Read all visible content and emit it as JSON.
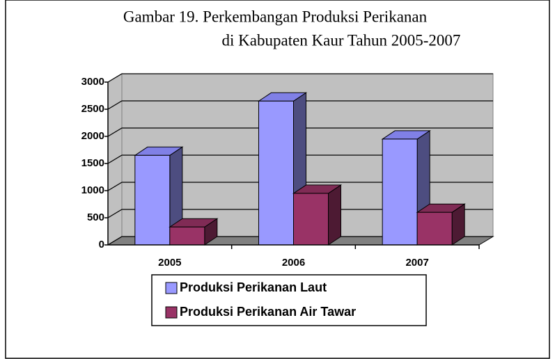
{
  "chart_data": {
    "type": "bar3d",
    "title_lines": [
      "Gambar 19. Perkembangan Produksi Perikanan",
      "di Kabupaten Kaur Tahun 2005-2007"
    ],
    "categories": [
      "2005",
      "2006",
      "2007"
    ],
    "series": [
      {
        "name": "Produksi Perikanan Laut",
        "color": "#9999ff",
        "values": [
          1650,
          2650,
          1950
        ]
      },
      {
        "name": "Produksi Perikanan Air Tawar",
        "color": "#993366",
        "values": [
          330,
          950,
          600
        ]
      }
    ],
    "ylim": [
      0,
      3000
    ],
    "yticks": [
      0,
      500,
      1000,
      1500,
      2000,
      2500,
      3000
    ],
    "grid": true,
    "legend": "bottom"
  }
}
